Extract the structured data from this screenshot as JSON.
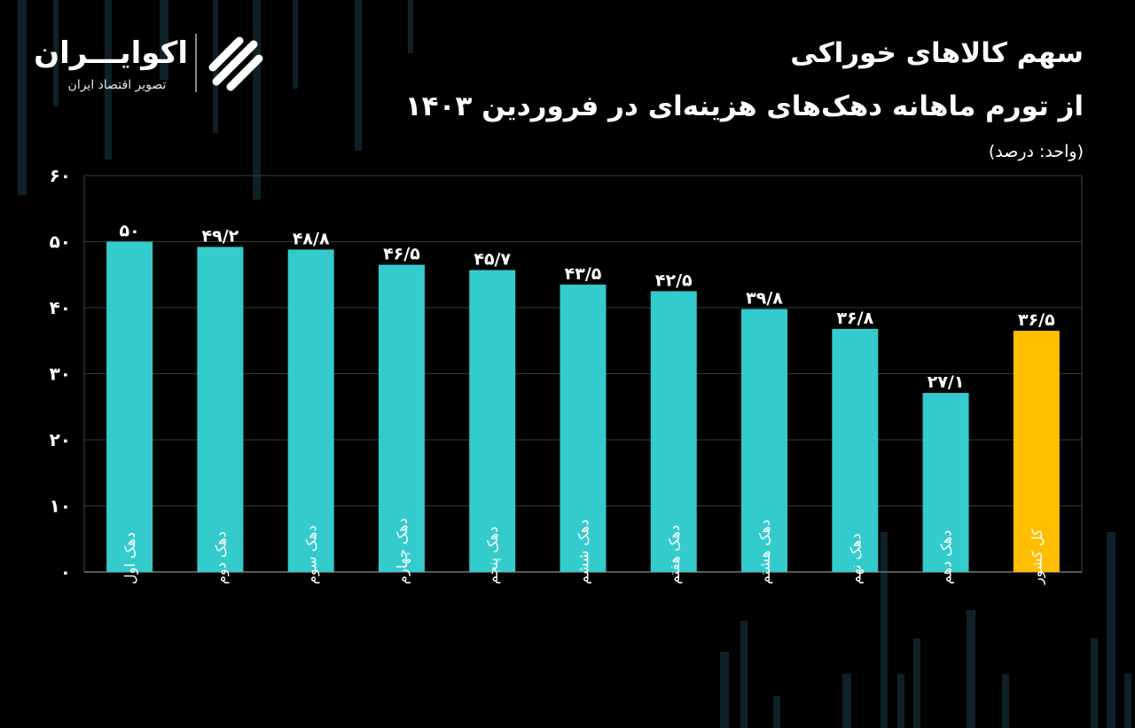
{
  "title": {
    "line1": "سهم کالاهای خوراکی",
    "line2": "از تورم ماهانه دهک‌های هزینه‌ای در فروردین ۱۴۰۳",
    "unit": "(واحد: درصد)"
  },
  "brand": {
    "name": "اکوایـــران",
    "tagline": "تصویر اقتصاد ایران",
    "logo_icon": "ecoiran-logo-icon"
  },
  "colors": {
    "background": "#000000",
    "bar": "#34cbcd",
    "highlight": "#ffbf00",
    "grid": "#3a3a3a",
    "text": "#ffffff"
  },
  "chart_data": {
    "type": "bar",
    "categories": [
      "دهک اول",
      "دهک دوم",
      "دهک سوم",
      "دهک چهارم",
      "دهک پنجم",
      "دهک ششم",
      "دهک هفتم",
      "دهک هشتم",
      "دهک نهم",
      "دهک دهم",
      "کل کشور"
    ],
    "values": [
      50,
      49.2,
      48.8,
      46.5,
      45.7,
      43.5,
      42.5,
      39.8,
      36.8,
      27.1,
      36.5
    ],
    "value_labels": [
      "۵۰",
      "۴۹/۲",
      "۴۸/۸",
      "۴۶/۵",
      "۴۵/۷",
      "۴۳/۵",
      "۴۲/۵",
      "۳۹/۸",
      "۳۶/۸",
      "۲۷/۱",
      "۳۶/۵"
    ],
    "highlight_category": "کل کشور",
    "yticks": [
      0,
      10,
      20,
      30,
      40,
      50,
      60
    ],
    "ytick_labels": [
      "۰",
      "۱۰",
      "۲۰",
      "۳۰",
      "۴۰",
      "۵۰",
      "۶۰"
    ],
    "ylim": [
      0,
      60
    ],
    "grid": true,
    "legend": "none",
    "title": "سهم کالاهای خوراکی از تورم ماهانه دهک‌های هزینه‌ای در فروردین ۱۴۰۳",
    "ylabel": "(واحد: درصد)",
    "xlabel": ""
  }
}
